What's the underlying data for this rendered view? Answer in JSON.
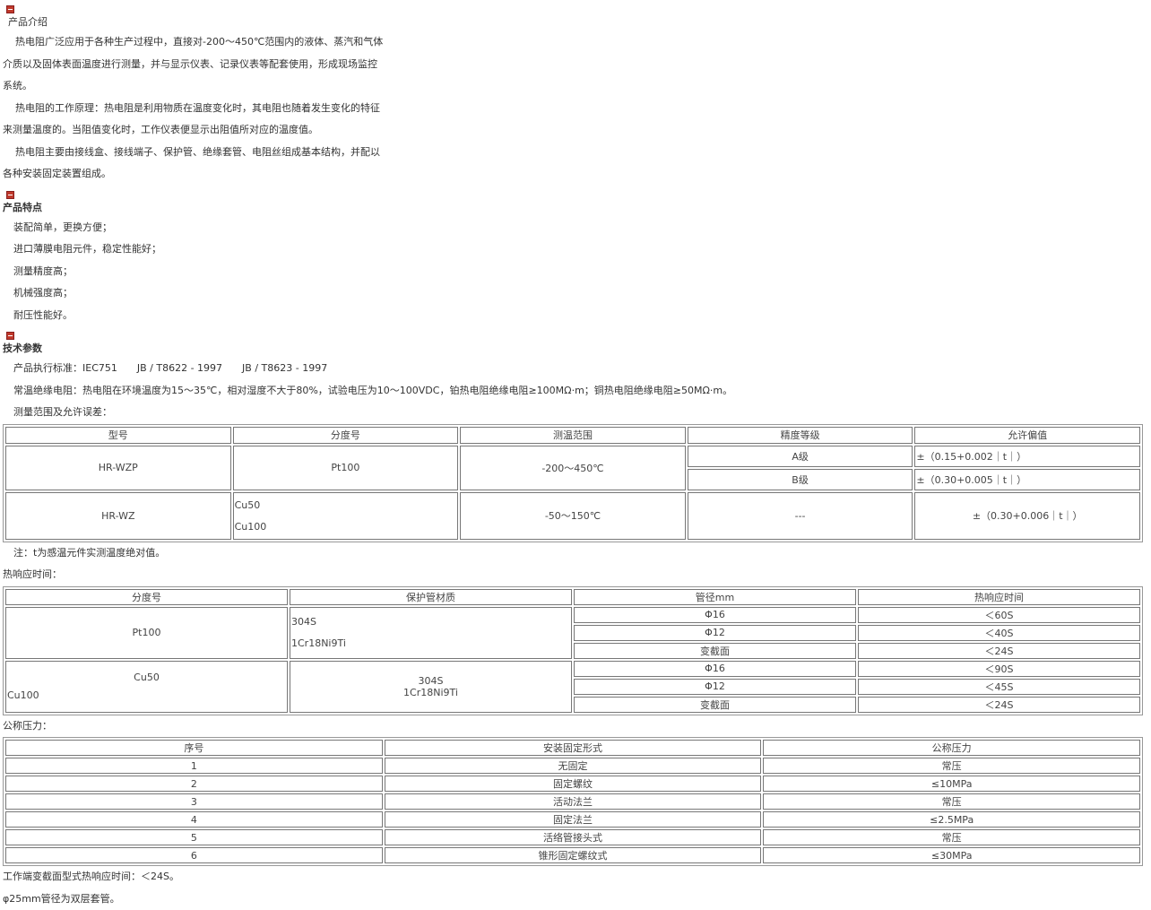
{
  "sections": {
    "intro": {
      "title": "产品介绍",
      "icon": "section-bullet-icon",
      "paragraphs": [
        "热电阻广泛应用于各种生产过程中，直接对-200～450℃范围内的液体、蒸汽和气体",
        "介质以及固体表面温度进行测量，并与显示仪表、记录仪表等配套使用，形成现场监控",
        "系统。",
        "热电阻的工作原理：热电阻是利用物质在温度变化时，其电阻也随着发生变化的特征",
        "来测量温度的。当阻值变化时，工作仪表便显示出阻值所对应的温度值。",
        "热电阻主要由接线盒、接线端子、保护管、绝缘套管、电阻丝组成基本结构，并配以",
        "各种安装固定装置组成。"
      ]
    },
    "features": {
      "title": "产品特点",
      "items": [
        "装配简单，更换方便；",
        "进口薄膜电阻元件，稳定性能好；",
        "测量精度高；",
        "机械强度高；",
        "耐压性能好。"
      ]
    },
    "specs": {
      "title": "技术参数",
      "lines": [
        "产品执行标准：IEC751　　JB / T8622 - 1997　　JB / T8623 - 1997",
        "常温绝缘电阻：热电阻在环境温度为15～35℃，相对湿度不大于80%，试验电压为10～100VDC，铂热电阻绝缘电阻≥100MΩ·m；铜热电阻绝缘电阻≥50MΩ·m。",
        "测量范围及允许误差："
      ]
    }
  },
  "table1": {
    "headers": [
      "型号",
      "分度号",
      "测温范围",
      "精度等级",
      "允许偏值"
    ],
    "r1": {
      "model": "HR-WZP",
      "index": "Pt100",
      "range": "-200～450℃",
      "gradeA": "A级",
      "devA": "±（0.15+0.002｜t｜）",
      "gradeB": "B级",
      "devB": "±（0.30+0.005｜t｜）"
    },
    "r2": {
      "model": "HR-WZ",
      "index1": "Cu50",
      "index2": "Cu100",
      "range": "-50～150℃",
      "grade": "---",
      "dev": "±（0.30+0.006｜t｜）"
    }
  },
  "note1": "注：t为感温元件实测温度绝对值。",
  "response_title": "热响应时间：",
  "table2": {
    "headers": [
      "分度号",
      "保护管材质",
      "管径mm",
      "热响应时间"
    ],
    "g1": {
      "index": "Pt100",
      "mat1": "304S",
      "mat2": "1Cr18Ni9Ti",
      "rows": [
        [
          "Φ16",
          "＜60S"
        ],
        [
          "Φ12",
          "＜40S"
        ],
        [
          "变截面",
          "＜24S"
        ]
      ]
    },
    "g2": {
      "index1": "Cu50",
      "index2": "Cu100",
      "mat1": "304S",
      "mat2": "1Cr18Ni9Ti",
      "rows": [
        [
          "Φ16",
          "＜90S"
        ],
        [
          "Φ12",
          "＜45S"
        ],
        [
          "变截面",
          "＜24S"
        ]
      ]
    }
  },
  "pressure_title": "公称压力：",
  "table3": {
    "headers": [
      "序号",
      "安装固定形式",
      "公称压力"
    ],
    "rows": [
      [
        "1",
        "无固定",
        "常压"
      ],
      [
        "2",
        "固定螺纹",
        "≤10MPa"
      ],
      [
        "3",
        "活动法兰",
        "常压"
      ],
      [
        "4",
        "固定法兰",
        "≤2.5MPa"
      ],
      [
        "5",
        "活络管接头式",
        "常压"
      ],
      [
        "6",
        "锥形固定螺纹式",
        "≤30MPa"
      ]
    ]
  },
  "footer": [
    "工作端变截面型式热响应时间：＜24S。",
    "φ25mm管径为双层套管。"
  ]
}
